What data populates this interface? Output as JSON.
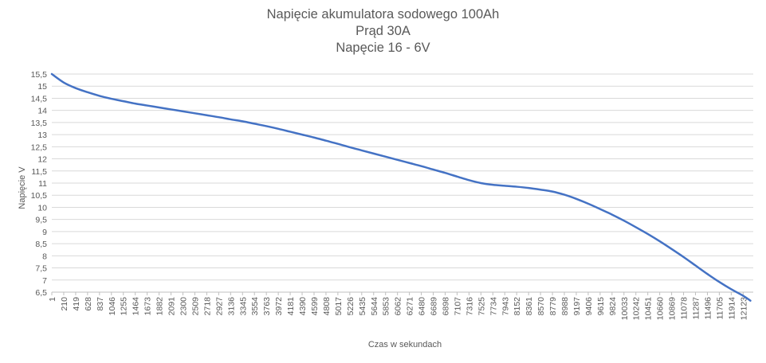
{
  "chart_data": {
    "type": "line",
    "title": "Napięcie akumulatora sodowego 100Ah",
    "subtitle_lines": [
      "Prąd 30A",
      "Napęcie 16 - 6V"
    ],
    "xlabel": "Czas w sekundach",
    "ylabel": "Napięcie V",
    "ylim": [
      6.5,
      15.5
    ],
    "xlim": [
      1,
      12300
    ],
    "y_ticks": [
      "6,5",
      "7",
      "7,5",
      "8",
      "8,5",
      "9",
      "9,5",
      "10",
      "10,5",
      "11",
      "11,5",
      "12",
      "12,5",
      "13",
      "13,5",
      "14",
      "14,5",
      "15",
      "15,5"
    ],
    "x_ticks": [
      "1",
      "210",
      "419",
      "628",
      "837",
      "1046",
      "1255",
      "1464",
      "1673",
      "1882",
      "2091",
      "2300",
      "2509",
      "2718",
      "2927",
      "3136",
      "3345",
      "3554",
      "3763",
      "3972",
      "4181",
      "4390",
      "4599",
      "4808",
      "5017",
      "5226",
      "5435",
      "5644",
      "5853",
      "6062",
      "6271",
      "6480",
      "6689",
      "6898",
      "7107",
      "7316",
      "7525",
      "7734",
      "7943",
      "8152",
      "8361",
      "8570",
      "8779",
      "8988",
      "9197",
      "9406",
      "9615",
      "9824",
      "10033",
      "10242",
      "10451",
      "10660",
      "10869",
      "11078",
      "11287",
      "11496",
      "11705",
      "11914",
      "12123"
    ],
    "grid": true,
    "legend": "none",
    "line_color": "#4472c4",
    "series": [
      {
        "x": [
          1,
          210,
          419,
          628,
          837,
          1046,
          1255,
          1464,
          1673,
          1882,
          2091,
          2300,
          2509,
          2718,
          2927,
          3136,
          3345,
          3554,
          3763,
          3972,
          4181,
          4390,
          4599,
          4808,
          5017,
          5226,
          5435,
          5644,
          5853,
          6062,
          6271,
          6480,
          6689,
          6898,
          7107,
          7316,
          7525,
          7734,
          7943,
          8152,
          8361,
          8570,
          8779,
          8988,
          9197,
          9406,
          9615,
          9824,
          10033,
          10242,
          10451,
          10660,
          10869,
          11078,
          11287,
          11496,
          11705,
          11914,
          12123,
          12250
        ],
        "values": [
          15.5,
          15.15,
          14.92,
          14.75,
          14.6,
          14.48,
          14.38,
          14.28,
          14.2,
          14.12,
          14.04,
          13.96,
          13.88,
          13.8,
          13.72,
          13.63,
          13.55,
          13.45,
          13.35,
          13.24,
          13.12,
          13.0,
          12.88,
          12.75,
          12.62,
          12.48,
          12.35,
          12.22,
          12.09,
          11.96,
          11.83,
          11.7,
          11.56,
          11.42,
          11.27,
          11.12,
          11.0,
          10.93,
          10.89,
          10.85,
          10.8,
          10.73,
          10.65,
          10.52,
          10.35,
          10.15,
          9.93,
          9.7,
          9.45,
          9.18,
          8.9,
          8.6,
          8.28,
          7.95,
          7.6,
          7.25,
          6.92,
          6.62,
          6.35,
          6.15
        ]
      }
    ]
  }
}
